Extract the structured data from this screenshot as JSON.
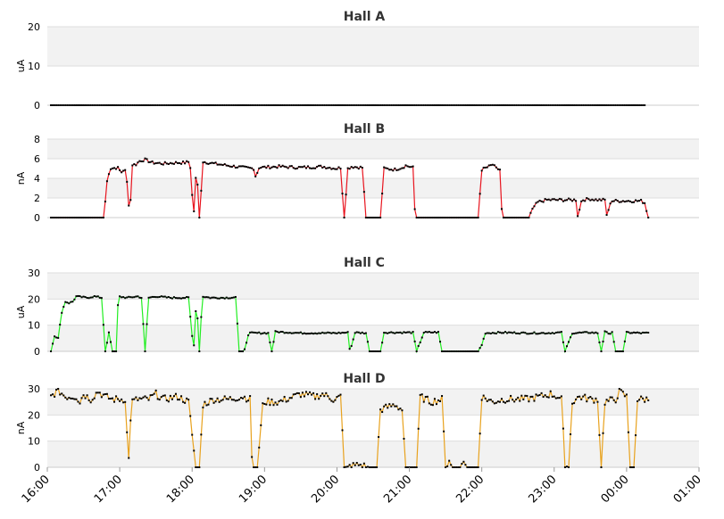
{
  "panels": [
    {
      "title": "Hall A",
      "ylabel": "uA",
      "ylim": [
        0,
        20
      ],
      "yticks": [
        "0",
        "10",
        "20"
      ],
      "color": "#cccccc",
      "marker": "#000000",
      "top": 30,
      "bottom": 118
    },
    {
      "title": "Hall B",
      "ylabel": "nA",
      "ylim": [
        0,
        8
      ],
      "yticks": [
        "0",
        "2",
        "4",
        "6",
        "8"
      ],
      "color": "#e8141e",
      "marker": "#000000",
      "top": 156,
      "bottom": 244
    },
    {
      "title": "Hall C",
      "ylabel": "uA",
      "ylim": [
        0,
        30
      ],
      "yticks": [
        "0",
        "10",
        "20",
        "30"
      ],
      "color": "#22ee22",
      "marker": "#000000",
      "top": 306,
      "bottom": 394
    },
    {
      "title": "Hall D",
      "ylabel": "nA",
      "ylim": [
        0,
        30
      ],
      "yticks": [
        "0",
        "10",
        "20",
        "30"
      ],
      "color": "#e8a21e",
      "marker": "#000000",
      "top": 436,
      "bottom": 524
    }
  ],
  "xaxis": {
    "ticks": [
      "16:00",
      "17:00",
      "18:00",
      "19:00",
      "20:00",
      "21:00",
      "22:00",
      "23:00",
      "00:00",
      "01:00"
    ],
    "range_hours": [
      16,
      25
    ]
  },
  "chart_data": [
    {
      "type": "line",
      "title": "Hall A",
      "ylabel": "uA",
      "ylim": [
        0,
        20
      ],
      "x_unit": "hours",
      "segments": [
        [
          16.05,
          0
        ],
        [
          24.25,
          0
        ]
      ],
      "noise": 0
    },
    {
      "type": "line",
      "title": "Hall B",
      "ylabel": "nA",
      "ylim": [
        0,
        8
      ],
      "x_unit": "hours",
      "segments": [
        [
          16.05,
          0
        ],
        [
          16.78,
          0
        ],
        [
          16.83,
          4.1
        ],
        [
          16.87,
          5.0
        ],
        [
          16.97,
          5.1
        ],
        [
          17.02,
          4.6
        ],
        [
          17.07,
          5.0
        ],
        [
          17.1,
          3.6
        ],
        [
          17.14,
          0
        ],
        [
          17.17,
          5.4
        ],
        [
          17.22,
          5.4
        ],
        [
          17.28,
          5.8
        ],
        [
          17.35,
          5.9
        ],
        [
          17.45,
          5.6
        ],
        [
          17.6,
          5.5
        ],
        [
          17.8,
          5.6
        ],
        [
          17.9,
          5.6
        ],
        [
          17.97,
          5.7
        ],
        [
          18.02,
          0
        ],
        [
          18.06,
          5.3
        ],
        [
          18.1,
          0
        ],
        [
          18.15,
          5.7
        ],
        [
          18.3,
          5.5
        ],
        [
          18.5,
          5.3
        ],
        [
          18.6,
          5.2
        ],
        [
          18.7,
          5.1
        ],
        [
          18.85,
          5.0
        ],
        [
          18.88,
          4.1
        ],
        [
          18.92,
          5.1
        ],
        [
          19.2,
          5.2
        ],
        [
          19.5,
          5.1
        ],
        [
          19.8,
          5.2
        ],
        [
          19.9,
          5.1
        ],
        [
          20.0,
          5.0
        ],
        [
          20.05,
          5.1
        ],
        [
          20.1,
          0
        ],
        [
          20.15,
          5.0
        ],
        [
          20.2,
          5.2
        ],
        [
          20.35,
          5.1
        ],
        [
          20.4,
          0
        ],
        [
          20.6,
          0
        ],
        [
          20.65,
          5.0
        ],
        [
          20.8,
          4.9
        ],
        [
          20.9,
          5.1
        ],
        [
          20.95,
          5.3
        ],
        [
          21.05,
          5.1
        ],
        [
          21.08,
          0
        ],
        [
          21.95,
          0
        ],
        [
          22.0,
          4.9
        ],
        [
          22.1,
          5.2
        ],
        [
          22.15,
          5.4
        ],
        [
          22.2,
          5.0
        ],
        [
          22.25,
          4.9
        ],
        [
          22.28,
          0
        ],
        [
          22.65,
          0
        ],
        [
          22.72,
          1.1
        ],
        [
          22.78,
          1.6
        ],
        [
          22.9,
          1.8
        ],
        [
          23.1,
          1.8
        ],
        [
          23.3,
          1.8
        ],
        [
          23.32,
          0
        ],
        [
          23.38,
          1.8
        ],
        [
          23.5,
          1.9
        ],
        [
          23.6,
          1.8
        ],
        [
          23.7,
          1.8
        ],
        [
          23.73,
          0
        ],
        [
          23.78,
          1.7
        ],
        [
          24.0,
          1.7
        ],
        [
          24.2,
          1.7
        ],
        [
          24.25,
          1.5
        ],
        [
          24.3,
          0
        ]
      ],
      "noise": 0.15
    },
    {
      "type": "line",
      "title": "Hall C",
      "ylabel": "uA",
      "ylim": [
        0,
        30
      ],
      "x_unit": "hours",
      "segments": [
        [
          16.05,
          0
        ],
        [
          16.1,
          6
        ],
        [
          16.15,
          5
        ],
        [
          16.2,
          15
        ],
        [
          16.25,
          19
        ],
        [
          16.3,
          18.5
        ],
        [
          16.35,
          19
        ],
        [
          16.4,
          21
        ],
        [
          16.55,
          20.5
        ],
        [
          16.65,
          21
        ],
        [
          16.75,
          20.5
        ],
        [
          16.8,
          0
        ],
        [
          16.85,
          7
        ],
        [
          16.9,
          0
        ],
        [
          16.95,
          0
        ],
        [
          16.98,
          21
        ],
        [
          17.1,
          20.5
        ],
        [
          17.25,
          21
        ],
        [
          17.3,
          20.5
        ],
        [
          17.35,
          0
        ],
        [
          17.4,
          20.5
        ],
        [
          17.5,
          21
        ],
        [
          17.7,
          20.5
        ],
        [
          17.95,
          20.5
        ],
        [
          18.02,
          0
        ],
        [
          18.06,
          20.5
        ],
        [
          18.1,
          0
        ],
        [
          18.14,
          21
        ],
        [
          18.25,
          20.5
        ],
        [
          18.5,
          20.5
        ],
        [
          18.6,
          20.7
        ],
        [
          18.65,
          0
        ],
        [
          18.72,
          0
        ],
        [
          18.78,
          7
        ],
        [
          19.0,
          7
        ],
        [
          19.05,
          7
        ],
        [
          19.1,
          0
        ],
        [
          19.15,
          7.5
        ],
        [
          19.5,
          7
        ],
        [
          19.8,
          7
        ],
        [
          20.0,
          7
        ],
        [
          20.15,
          7.2
        ],
        [
          20.18,
          0
        ],
        [
          20.25,
          7.2
        ],
        [
          20.4,
          7
        ],
        [
          20.45,
          0
        ],
        [
          20.6,
          0
        ],
        [
          20.65,
          7.2
        ],
        [
          20.9,
          7.2
        ],
        [
          21.05,
          7.2
        ],
        [
          21.1,
          0
        ],
        [
          21.2,
          7.2
        ],
        [
          21.4,
          7.3
        ],
        [
          21.45,
          0
        ],
        [
          21.95,
          0
        ],
        [
          22.0,
          2.5
        ],
        [
          22.05,
          7
        ],
        [
          22.3,
          7.2
        ],
        [
          22.6,
          7
        ],
        [
          22.9,
          7
        ],
        [
          23.1,
          7.2
        ],
        [
          23.15,
          0
        ],
        [
          23.25,
          7
        ],
        [
          23.5,
          7.2
        ],
        [
          23.6,
          7
        ],
        [
          23.65,
          0
        ],
        [
          23.7,
          7.8
        ],
        [
          23.75,
          6.5
        ],
        [
          23.8,
          7.5
        ],
        [
          23.85,
          0
        ],
        [
          23.95,
          0
        ],
        [
          24.0,
          7.2
        ],
        [
          24.2,
          7
        ],
        [
          24.3,
          7
        ]
      ],
      "noise": 0.3
    },
    {
      "type": "line",
      "title": "Hall D",
      "ylabel": "nA",
      "ylim": [
        0,
        30
      ],
      "x_unit": "hours",
      "segments": [
        [
          16.05,
          27
        ],
        [
          16.15,
          29.5
        ],
        [
          16.25,
          27
        ],
        [
          16.4,
          27
        ],
        [
          16.45,
          25
        ],
        [
          16.5,
          28
        ],
        [
          16.6,
          26
        ],
        [
          16.7,
          29
        ],
        [
          16.8,
          27
        ],
        [
          16.9,
          26
        ],
        [
          17.0,
          26
        ],
        [
          17.08,
          26
        ],
        [
          17.12,
          0
        ],
        [
          17.16,
          25
        ],
        [
          17.25,
          26
        ],
        [
          17.4,
          26
        ],
        [
          17.5,
          28
        ],
        [
          17.6,
          26
        ],
        [
          17.8,
          27
        ],
        [
          17.95,
          25
        ],
        [
          18.05,
          0
        ],
        [
          18.1,
          0
        ],
        [
          18.15,
          24
        ],
        [
          18.3,
          26
        ],
        [
          18.5,
          26
        ],
        [
          18.7,
          27
        ],
        [
          18.8,
          26
        ],
        [
          18.83,
          0
        ],
        [
          18.9,
          0
        ],
        [
          18.98,
          25
        ],
        [
          19.2,
          25
        ],
        [
          19.4,
          27
        ],
        [
          19.5,
          28
        ],
        [
          19.7,
          27
        ],
        [
          19.8,
          28
        ],
        [
          19.95,
          26
        ],
        [
          20.05,
          27
        ],
        [
          20.1,
          0
        ],
        [
          20.3,
          1
        ],
        [
          20.45,
          0
        ],
        [
          20.55,
          0
        ],
        [
          20.6,
          22
        ],
        [
          20.7,
          23
        ],
        [
          20.8,
          24
        ],
        [
          20.9,
          22
        ],
        [
          20.95,
          0
        ],
        [
          21.1,
          0
        ],
        [
          21.15,
          27
        ],
        [
          21.3,
          25
        ],
        [
          21.45,
          26
        ],
        [
          21.5,
          0
        ],
        [
          21.55,
          3
        ],
        [
          21.6,
          0
        ],
        [
          21.7,
          0
        ],
        [
          21.75,
          2
        ],
        [
          21.8,
          0
        ],
        [
          21.95,
          0
        ],
        [
          22.0,
          27
        ],
        [
          22.15,
          25
        ],
        [
          22.3,
          26
        ],
        [
          22.6,
          26
        ],
        [
          22.8,
          27
        ],
        [
          22.95,
          28
        ],
        [
          23.05,
          27
        ],
        [
          23.1,
          26
        ],
        [
          23.15,
          1
        ],
        [
          23.2,
          0
        ],
        [
          23.25,
          25
        ],
        [
          23.35,
          27
        ],
        [
          23.5,
          26
        ],
        [
          23.6,
          26
        ],
        [
          23.65,
          0
        ],
        [
          23.7,
          25
        ],
        [
          23.85,
          26
        ],
        [
          23.9,
          29
        ],
        [
          24.0,
          27
        ],
        [
          24.05,
          0
        ],
        [
          24.1,
          0
        ],
        [
          24.15,
          26
        ],
        [
          24.3,
          26
        ]
      ],
      "noise": 1.4
    }
  ]
}
